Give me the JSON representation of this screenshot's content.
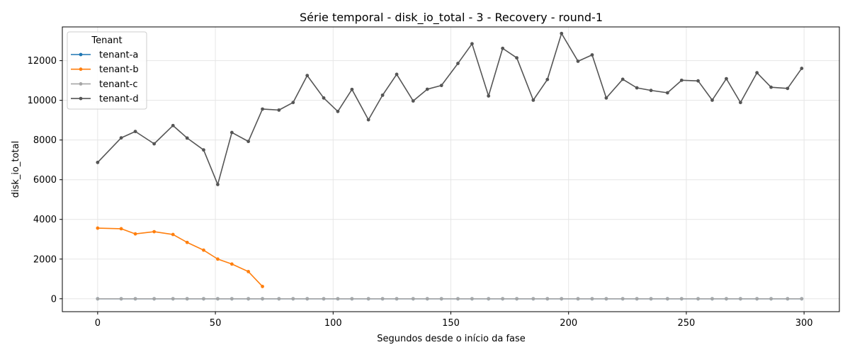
{
  "chart_data": {
    "type": "line",
    "title": "Série temporal - disk_io_total - 3 - Recovery - round-1",
    "xlabel": "Segundos desde o início da fase",
    "ylabel": "disk_io_total",
    "xlim": [
      -15,
      315
    ],
    "ylim": [
      -650,
      13700
    ],
    "xticks": [
      0,
      50,
      100,
      150,
      200,
      250,
      300
    ],
    "yticks": [
      0,
      2000,
      4000,
      6000,
      8000,
      10000,
      12000
    ],
    "grid": true,
    "legend": {
      "title": "Tenant",
      "placement": "top-left"
    },
    "series": [
      {
        "name": "tenant-a",
        "color": "#1f77b4",
        "x": [
          0,
          10,
          16,
          24,
          32,
          38,
          45,
          51,
          57,
          64,
          70,
          77,
          83,
          89,
          96,
          102,
          108,
          115,
          121,
          127,
          134,
          140,
          146,
          153,
          159,
          166,
          172,
          178,
          185,
          191,
          197,
          204,
          210,
          216,
          223,
          229,
          235,
          242,
          248,
          255,
          261,
          267,
          273,
          280,
          286,
          293,
          299
        ],
        "values": [
          0,
          0,
          0,
          0,
          0,
          0,
          0,
          0,
          0,
          0,
          0,
          0,
          0,
          0,
          0,
          0,
          0,
          0,
          0,
          0,
          0,
          0,
          0,
          0,
          0,
          0,
          0,
          0,
          0,
          0,
          0,
          0,
          0,
          0,
          0,
          0,
          0,
          0,
          0,
          0,
          0,
          0,
          0,
          0,
          0,
          0,
          0
        ]
      },
      {
        "name": "tenant-b",
        "color": "#ff7f0e",
        "x": [
          0,
          10,
          16,
          24,
          32,
          38,
          45,
          51,
          57,
          64,
          70
        ],
        "values": [
          3560,
          3530,
          3270,
          3380,
          3240,
          2840,
          2450,
          2000,
          1750,
          1370,
          620
        ]
      },
      {
        "name": "tenant-c",
        "color": "#a6a6a6",
        "x": [
          0,
          10,
          16,
          24,
          32,
          38,
          45,
          51,
          57,
          64,
          70,
          77,
          83,
          89,
          96,
          102,
          108,
          115,
          121,
          127,
          134,
          140,
          146,
          153,
          159,
          166,
          172,
          178,
          185,
          191,
          197,
          204,
          210,
          216,
          223,
          229,
          235,
          242,
          248,
          255,
          261,
          267,
          273,
          280,
          286,
          293,
          299
        ],
        "values": [
          0,
          0,
          0,
          0,
          0,
          0,
          0,
          0,
          0,
          0,
          0,
          0,
          0,
          0,
          0,
          0,
          0,
          0,
          0,
          0,
          0,
          0,
          0,
          0,
          0,
          0,
          0,
          0,
          0,
          0,
          0,
          0,
          0,
          0,
          0,
          0,
          0,
          0,
          0,
          0,
          0,
          0,
          0,
          0,
          0,
          0,
          0
        ]
      },
      {
        "name": "tenant-d",
        "color": "#555555",
        "x": [
          0,
          10,
          16,
          24,
          32,
          38,
          45,
          51,
          57,
          64,
          70,
          77,
          83,
          89,
          96,
          102,
          108,
          115,
          121,
          127,
          134,
          140,
          146,
          153,
          159,
          166,
          172,
          178,
          185,
          191,
          197,
          204,
          210,
          216,
          223,
          229,
          235,
          242,
          248,
          255,
          261,
          267,
          273,
          280,
          286,
          293,
          299
        ],
        "values": [
          6870,
          8110,
          8430,
          7810,
          8730,
          8100,
          7500,
          5760,
          8380,
          7930,
          9560,
          9510,
          9890,
          11250,
          10120,
          9440,
          10550,
          9020,
          10260,
          11310,
          9970,
          10560,
          10750,
          11860,
          12850,
          10220,
          12620,
          12140,
          10010,
          11050,
          13370,
          11970,
          12290,
          10120,
          11060,
          10630,
          10500,
          10380,
          11010,
          10980,
          10010,
          11090,
          9890,
          11390,
          10660,
          10600,
          11610
        ]
      }
    ]
  }
}
